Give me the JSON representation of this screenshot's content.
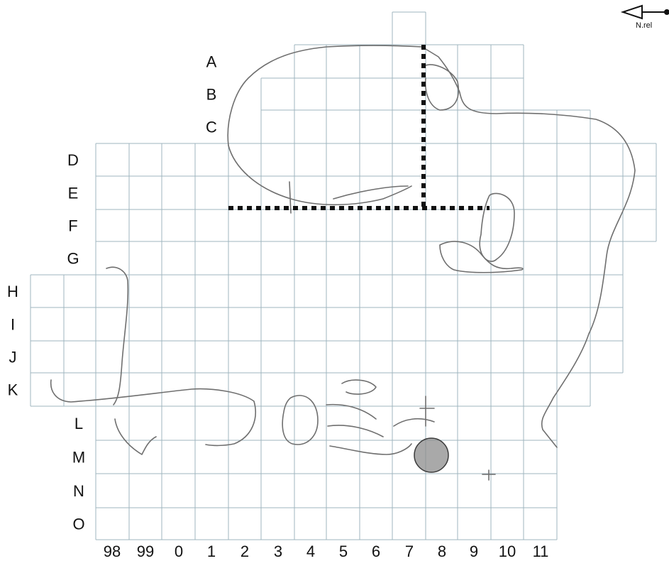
{
  "north_arrow": {
    "label": "N.rel"
  },
  "row_labels": [
    "A",
    "B",
    "C",
    "D",
    "E",
    "F",
    "G",
    "H",
    "I",
    "J",
    "K",
    "L",
    "M",
    "N",
    "O"
  ],
  "column_labels": [
    "98",
    "99",
    "0",
    "1",
    "2",
    "3",
    "4",
    "5",
    "6",
    "7",
    "8",
    "9",
    "10",
    "11"
  ],
  "colors": {
    "grid": "#9fb6bf",
    "outline": "#6f6f6f",
    "dotted_line": "#111111",
    "feature_fill": "#8c8c8c"
  }
}
